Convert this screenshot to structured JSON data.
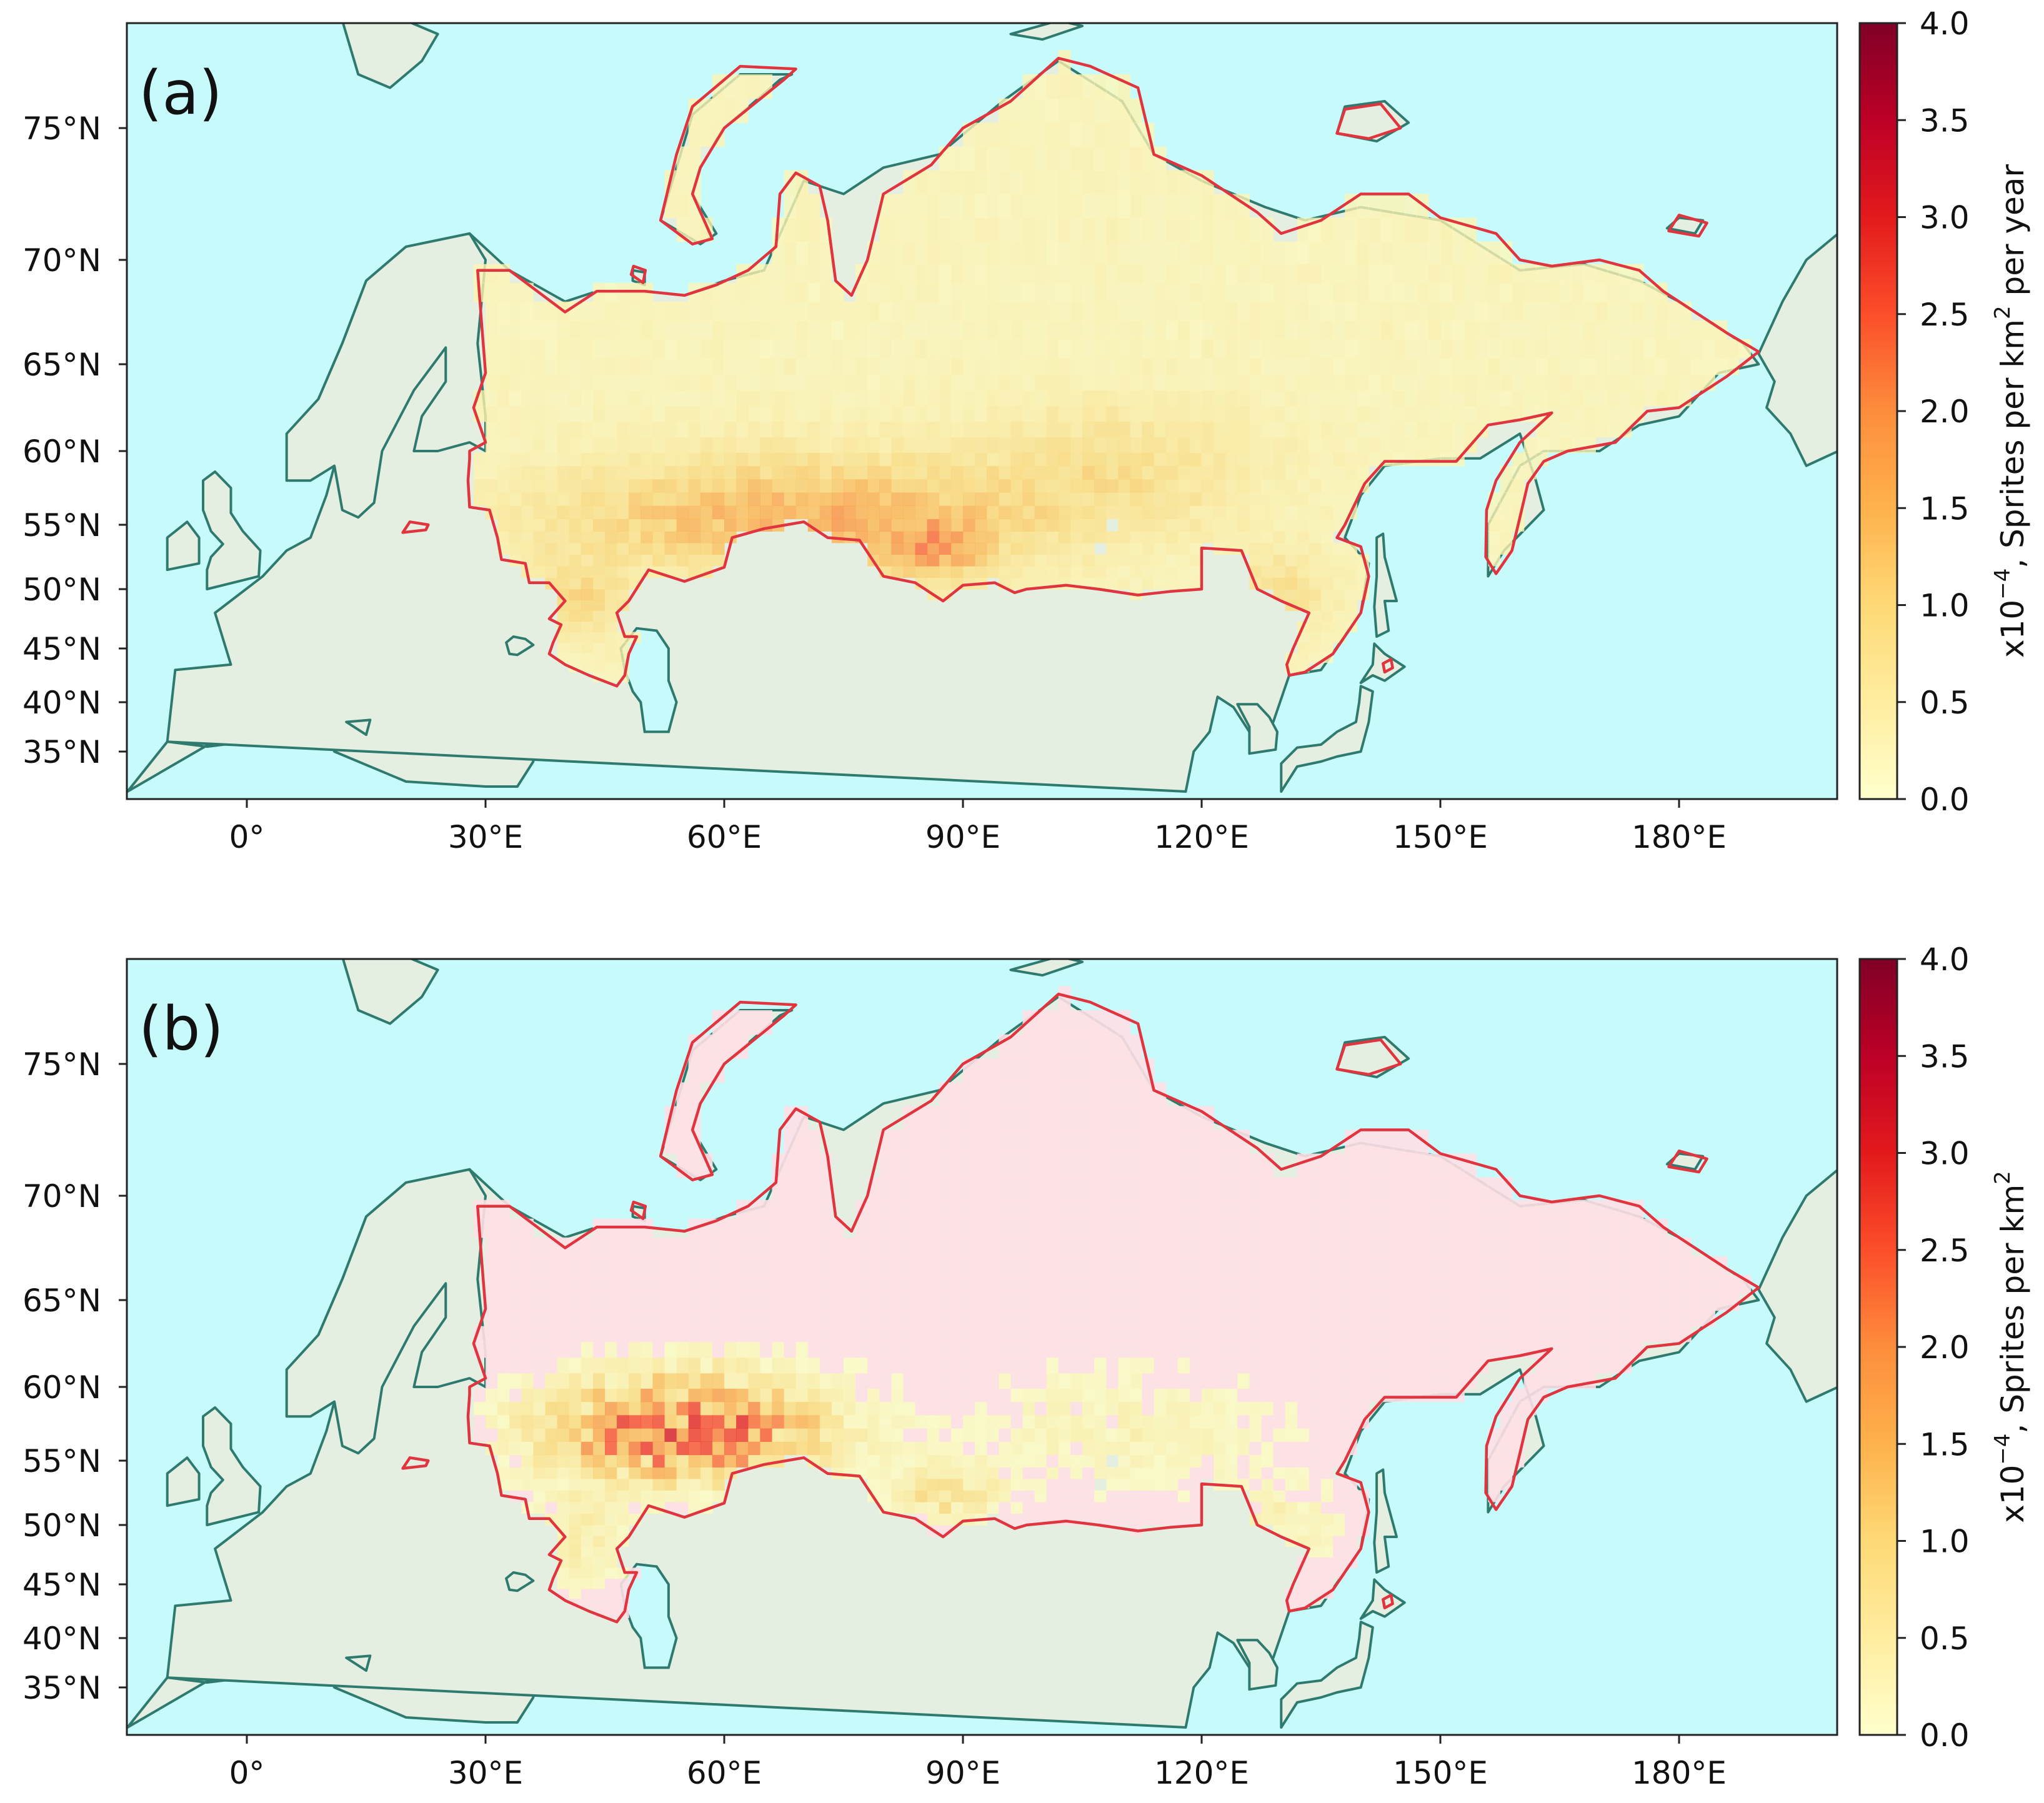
{
  "figure": {
    "panels": [
      {
        "id": "a",
        "label": "(a)",
        "colorbar": {
          "label_prefix": "x10",
          "label_exp": "−4",
          "label_main": ", Sprites per km",
          "label_sq": "2",
          "label_suffix": " per year",
          "range": [
            0.0,
            4.0
          ],
          "ticks": [
            "0.0",
            "0.5",
            "1.0",
            "1.5",
            "2.0",
            "2.5",
            "3.0",
            "3.5",
            "4.0"
          ]
        }
      },
      {
        "id": "b",
        "label": "(b)",
        "colorbar": {
          "label_prefix": "x10",
          "label_exp": "−4",
          "label_main": ", Sprites per km",
          "label_sq": "2",
          "label_suffix": "",
          "range": [
            0.0,
            4.0
          ],
          "ticks": [
            "0.0",
            "0.5",
            "1.0",
            "1.5",
            "2.0",
            "2.5",
            "3.0",
            "3.5",
            "4.0"
          ]
        }
      }
    ],
    "lat_ticks": [
      "35°N",
      "40°N",
      "45°N",
      "50°N",
      "55°N",
      "60°N",
      "65°N",
      "70°N",
      "75°N"
    ],
    "lat_values": [
      35,
      40,
      45,
      50,
      55,
      60,
      65,
      70,
      75
    ],
    "lon_ticks": [
      "0°",
      "30°E",
      "60°E",
      "90°E",
      "120°E",
      "150°E",
      "180°E"
    ],
    "lon_values": [
      0,
      30,
      60,
      90,
      120,
      150,
      180
    ],
    "map_extent": {
      "lon": [
        -15,
        200
      ],
      "lat": [
        31,
        79
      ]
    },
    "colors": {
      "ocean": "#c7fbfb",
      "land": "#e4efe2",
      "coast": "#2f7a6f",
      "region_border": "#e0343f",
      "colormap": [
        "#ffffcc",
        "#ffeda0",
        "#fed976",
        "#feb24c",
        "#fd8d3c",
        "#fc4e2a",
        "#e31a1c",
        "#bd0026",
        "#800026"
      ]
    }
  }
}
